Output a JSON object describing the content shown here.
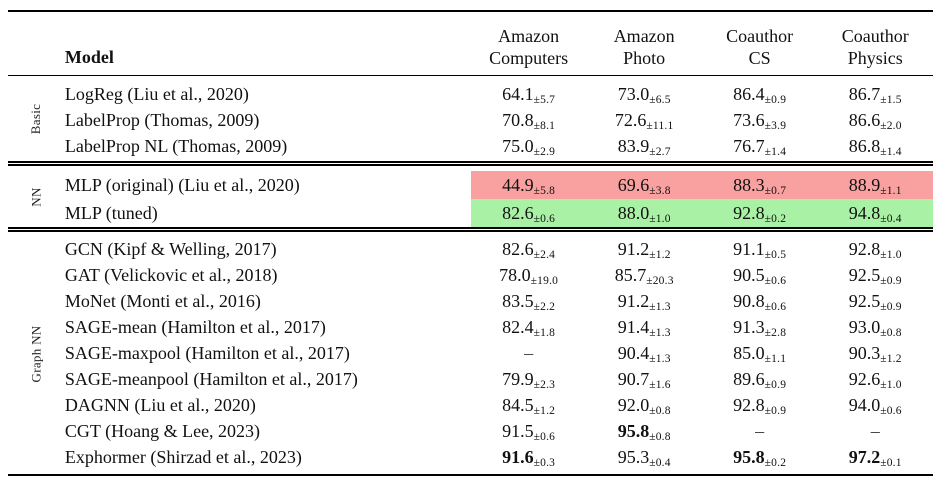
{
  "table": {
    "model_header": "Model",
    "columns": [
      {
        "line1": "Amazon",
        "line2": "Computers"
      },
      {
        "line1": "Amazon",
        "line2": "Photo"
      },
      {
        "line1": "Coauthor",
        "line2": "CS"
      },
      {
        "line1": "Coauthor",
        "line2": "Physics"
      }
    ],
    "highlight_colors": {
      "bad": "#f9a0a0",
      "good": "#a9f1a4"
    },
    "sections": [
      {
        "id": "basic",
        "label": "Basic",
        "rows": [
          {
            "model": "LogReg (Liu et al., 2020)",
            "values": [
              {
                "v": "64.1",
                "e": "±5.7",
                "b": false
              },
              {
                "v": "73.0",
                "e": "±6.5",
                "b": false
              },
              {
                "v": "86.4",
                "e": "±0.9",
                "b": false
              },
              {
                "v": "86.7",
                "e": "±1.5",
                "b": false
              }
            ]
          },
          {
            "model": "LabelProp (Thomas, 2009)",
            "values": [
              {
                "v": "70.8",
                "e": "±8.1",
                "b": false
              },
              {
                "v": "72.6",
                "e": "±11.1",
                "b": false
              },
              {
                "v": "73.6",
                "e": "±3.9",
                "b": false
              },
              {
                "v": "86.6",
                "e": "±2.0",
                "b": false
              }
            ]
          },
          {
            "model": "LabelProp NL (Thomas, 2009)",
            "values": [
              {
                "v": "75.0",
                "e": "±2.9",
                "b": false
              },
              {
                "v": "83.9",
                "e": "±2.7",
                "b": false
              },
              {
                "v": "76.7",
                "e": "±1.4",
                "b": false
              },
              {
                "v": "86.8",
                "e": "±1.4",
                "b": false
              }
            ]
          }
        ]
      },
      {
        "id": "nn",
        "label": "NN",
        "rows": [
          {
            "model": "MLP (original) (Liu et al., 2020)",
            "highlight": "bad",
            "values": [
              {
                "v": "44.9",
                "e": "±5.8",
                "b": false
              },
              {
                "v": "69.6",
                "e": "±3.8",
                "b": false
              },
              {
                "v": "88.3",
                "e": "±0.7",
                "b": false
              },
              {
                "v": "88.9",
                "e": "±1.1",
                "b": false
              }
            ]
          },
          {
            "model": "MLP (tuned)",
            "highlight": "good",
            "values": [
              {
                "v": "82.6",
                "e": "±0.6",
                "b": false
              },
              {
                "v": "88.0",
                "e": "±1.0",
                "b": false
              },
              {
                "v": "92.8",
                "e": "±0.2",
                "b": false
              },
              {
                "v": "94.8",
                "e": "±0.4",
                "b": false
              }
            ]
          }
        ]
      },
      {
        "id": "graph-nn",
        "label": "Graph NN",
        "rows": [
          {
            "model": "GCN (Kipf & Welling, 2017)",
            "values": [
              {
                "v": "82.6",
                "e": "±2.4",
                "b": false
              },
              {
                "v": "91.2",
                "e": "±1.2",
                "b": false
              },
              {
                "v": "91.1",
                "e": "±0.5",
                "b": false
              },
              {
                "v": "92.8",
                "e": "±1.0",
                "b": false
              }
            ]
          },
          {
            "model": "GAT (Velickovic et al., 2018)",
            "values": [
              {
                "v": "78.0",
                "e": "±19.0",
                "b": false
              },
              {
                "v": "85.7",
                "e": "±20.3",
                "b": false
              },
              {
                "v": "90.5",
                "e": "±0.6",
                "b": false
              },
              {
                "v": "92.5",
                "e": "±0.9",
                "b": false
              }
            ]
          },
          {
            "model": "MoNet (Monti et al., 2016)",
            "values": [
              {
                "v": "83.5",
                "e": "±2.2",
                "b": false
              },
              {
                "v": "91.2",
                "e": "±1.3",
                "b": false
              },
              {
                "v": "90.8",
                "e": "±0.6",
                "b": false
              },
              {
                "v": "92.5",
                "e": "±0.9",
                "b": false
              }
            ]
          },
          {
            "model": "SAGE-mean (Hamilton et al., 2017)",
            "values": [
              {
                "v": "82.4",
                "e": "±1.8",
                "b": false
              },
              {
                "v": "91.4",
                "e": "±1.3",
                "b": false
              },
              {
                "v": "91.3",
                "e": "±2.8",
                "b": false
              },
              {
                "v": "93.0",
                "e": "±0.8",
                "b": false
              }
            ]
          },
          {
            "model": "SAGE-maxpool (Hamilton et al., 2017)",
            "values": [
              {
                "v": "–",
                "e": "",
                "b": false
              },
              {
                "v": "90.4",
                "e": "±1.3",
                "b": false
              },
              {
                "v": "85.0",
                "e": "±1.1",
                "b": false
              },
              {
                "v": "90.3",
                "e": "±1.2",
                "b": false
              }
            ]
          },
          {
            "model": "SAGE-meanpool (Hamilton et al., 2017)",
            "values": [
              {
                "v": "79.9",
                "e": "±2.3",
                "b": false
              },
              {
                "v": "90.7",
                "e": "±1.6",
                "b": false
              },
              {
                "v": "89.6",
                "e": "±0.9",
                "b": false
              },
              {
                "v": "92.6",
                "e": "±1.0",
                "b": false
              }
            ]
          },
          {
            "model": "DAGNN (Liu et al., 2020)",
            "values": [
              {
                "v": "84.5",
                "e": "±1.2",
                "b": false
              },
              {
                "v": "92.0",
                "e": "±0.8",
                "b": false
              },
              {
                "v": "92.8",
                "e": "±0.9",
                "b": false
              },
              {
                "v": "94.0",
                "e": "±0.6",
                "b": false
              }
            ]
          },
          {
            "model": "CGT (Hoang & Lee, 2023)",
            "values": [
              {
                "v": "91.5",
                "e": "±0.6",
                "b": false
              },
              {
                "v": "95.8",
                "e": "±0.8",
                "b": true
              },
              {
                "v": "–",
                "e": "",
                "b": false
              },
              {
                "v": "–",
                "e": "",
                "b": false
              }
            ]
          },
          {
            "model": "Exphormer (Shirzad et al., 2023)",
            "values": [
              {
                "v": "91.6",
                "e": "±0.3",
                "b": true
              },
              {
                "v": "95.3",
                "e": "±0.4",
                "b": false
              },
              {
                "v": "95.8",
                "e": "±0.2",
                "b": true
              },
              {
                "v": "97.2",
                "e": "±0.1",
                "b": true
              }
            ]
          }
        ]
      }
    ]
  }
}
